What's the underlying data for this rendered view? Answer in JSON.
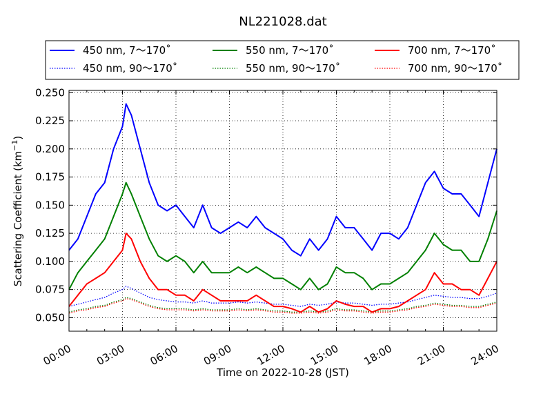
{
  "chart_data": {
    "type": "line",
    "title": "NL221028.dat",
    "xlabel": "Time on 2022-10-28 (JST)",
    "ylabel": "Scattering Coefficient (km",
    "ylabel_sup": "−1",
    "ylabel_close": ")",
    "xlim": [
      0,
      24
    ],
    "ylim": [
      0.038,
      0.252
    ],
    "x_ticks": [
      0,
      3,
      6,
      9,
      12,
      15,
      18,
      21,
      24
    ],
    "x_tick_labels": [
      "00:00",
      "03:00",
      "06:00",
      "09:00",
      "12:00",
      "15:00",
      "18:00",
      "21:00",
      "24:00"
    ],
    "y_ticks": [
      0.05,
      0.075,
      0.1,
      0.125,
      0.15,
      0.175,
      0.2,
      0.225,
      0.25
    ],
    "y_tick_labels": [
      "0.050",
      "0.075",
      "0.100",
      "0.125",
      "0.150",
      "0.175",
      "0.200",
      "0.225",
      "0.250"
    ],
    "grid": true,
    "legend_position": "top, above plot",
    "x": [
      0,
      0.5,
      1,
      1.5,
      2,
      2.5,
      3,
      3.2,
      3.5,
      4,
      4.5,
      5,
      5.5,
      6,
      6.5,
      7,
      7.5,
      8,
      8.5,
      9,
      9.5,
      10,
      10.5,
      11,
      11.5,
      12,
      12.5,
      13,
      13.5,
      14,
      14.5,
      15,
      15.5,
      16,
      16.5,
      17,
      17.5,
      18,
      18.5,
      19,
      19.5,
      20,
      20.5,
      21,
      21.5,
      22,
      22.5,
      23,
      23.5,
      24
    ],
    "series": [
      {
        "name": "450 nm, 7～170˚",
        "color": "#0000ff",
        "style": "solid",
        "values": [
          0.11,
          0.12,
          0.14,
          0.16,
          0.17,
          0.2,
          0.22,
          0.24,
          0.23,
          0.2,
          0.17,
          0.15,
          0.145,
          0.15,
          0.14,
          0.13,
          0.15,
          0.13,
          0.125,
          0.13,
          0.135,
          0.13,
          0.14,
          0.13,
          0.125,
          0.12,
          0.11,
          0.105,
          0.12,
          0.11,
          0.12,
          0.14,
          0.13,
          0.13,
          0.12,
          0.11,
          0.125,
          0.125,
          0.12,
          0.13,
          0.15,
          0.17,
          0.18,
          0.165,
          0.16,
          0.16,
          0.15,
          0.14,
          0.17,
          0.2
        ]
      },
      {
        "name": "550 nm, 7～170˚",
        "color": "#008000",
        "style": "solid",
        "values": [
          0.075,
          0.09,
          0.1,
          0.11,
          0.12,
          0.14,
          0.16,
          0.17,
          0.16,
          0.14,
          0.12,
          0.105,
          0.1,
          0.105,
          0.1,
          0.09,
          0.1,
          0.09,
          0.09,
          0.09,
          0.095,
          0.09,
          0.095,
          0.09,
          0.085,
          0.085,
          0.08,
          0.075,
          0.085,
          0.075,
          0.08,
          0.095,
          0.09,
          0.09,
          0.085,
          0.075,
          0.08,
          0.08,
          0.085,
          0.09,
          0.1,
          0.11,
          0.125,
          0.115,
          0.11,
          0.11,
          0.1,
          0.1,
          0.12,
          0.145
        ]
      },
      {
        "name": "700 nm, 7～170˚",
        "color": "#ff0000",
        "style": "solid",
        "values": [
          0.06,
          0.07,
          0.08,
          0.085,
          0.09,
          0.1,
          0.11,
          0.125,
          0.12,
          0.1,
          0.085,
          0.075,
          0.075,
          0.07,
          0.07,
          0.065,
          0.075,
          0.07,
          0.065,
          0.065,
          0.065,
          0.065,
          0.07,
          0.065,
          0.06,
          0.06,
          0.058,
          0.055,
          0.06,
          0.055,
          0.058,
          0.065,
          0.062,
          0.06,
          0.06,
          0.055,
          0.058,
          0.058,
          0.06,
          0.065,
          0.07,
          0.075,
          0.09,
          0.08,
          0.08,
          0.075,
          0.075,
          0.07,
          0.085,
          0.1
        ]
      },
      {
        "name": "450 nm, 90～170˚",
        "color": "#0000ff",
        "style": "dotted",
        "values": [
          0.06,
          0.062,
          0.064,
          0.066,
          0.068,
          0.072,
          0.075,
          0.078,
          0.076,
          0.072,
          0.068,
          0.066,
          0.065,
          0.064,
          0.064,
          0.063,
          0.065,
          0.063,
          0.063,
          0.063,
          0.064,
          0.063,
          0.064,
          0.063,
          0.062,
          0.062,
          0.061,
          0.06,
          0.062,
          0.061,
          0.062,
          0.064,
          0.063,
          0.063,
          0.062,
          0.061,
          0.062,
          0.062,
          0.063,
          0.064,
          0.066,
          0.068,
          0.07,
          0.069,
          0.068,
          0.068,
          0.067,
          0.067,
          0.069,
          0.072
        ]
      },
      {
        "name": "550 nm, 90～170˚",
        "color": "#008000",
        "style": "dotted",
        "values": [
          0.055,
          0.057,
          0.058,
          0.06,
          0.061,
          0.064,
          0.066,
          0.068,
          0.067,
          0.064,
          0.061,
          0.059,
          0.058,
          0.058,
          0.058,
          0.057,
          0.058,
          0.057,
          0.057,
          0.057,
          0.058,
          0.057,
          0.058,
          0.057,
          0.056,
          0.056,
          0.055,
          0.055,
          0.056,
          0.055,
          0.056,
          0.058,
          0.057,
          0.057,
          0.056,
          0.055,
          0.056,
          0.056,
          0.057,
          0.058,
          0.06,
          0.061,
          0.063,
          0.062,
          0.061,
          0.061,
          0.06,
          0.06,
          0.062,
          0.064
        ]
      },
      {
        "name": "700 nm, 90～170˚",
        "color": "#ff0000",
        "style": "dotted",
        "values": [
          0.054,
          0.056,
          0.057,
          0.059,
          0.06,
          0.063,
          0.065,
          0.067,
          0.066,
          0.063,
          0.06,
          0.058,
          0.057,
          0.057,
          0.057,
          0.056,
          0.057,
          0.056,
          0.056,
          0.056,
          0.057,
          0.056,
          0.057,
          0.056,
          0.055,
          0.055,
          0.054,
          0.054,
          0.055,
          0.054,
          0.055,
          0.057,
          0.056,
          0.056,
          0.055,
          0.054,
          0.055,
          0.055,
          0.056,
          0.057,
          0.059,
          0.06,
          0.062,
          0.061,
          0.06,
          0.06,
          0.059,
          0.059,
          0.061,
          0.063
        ]
      }
    ]
  }
}
